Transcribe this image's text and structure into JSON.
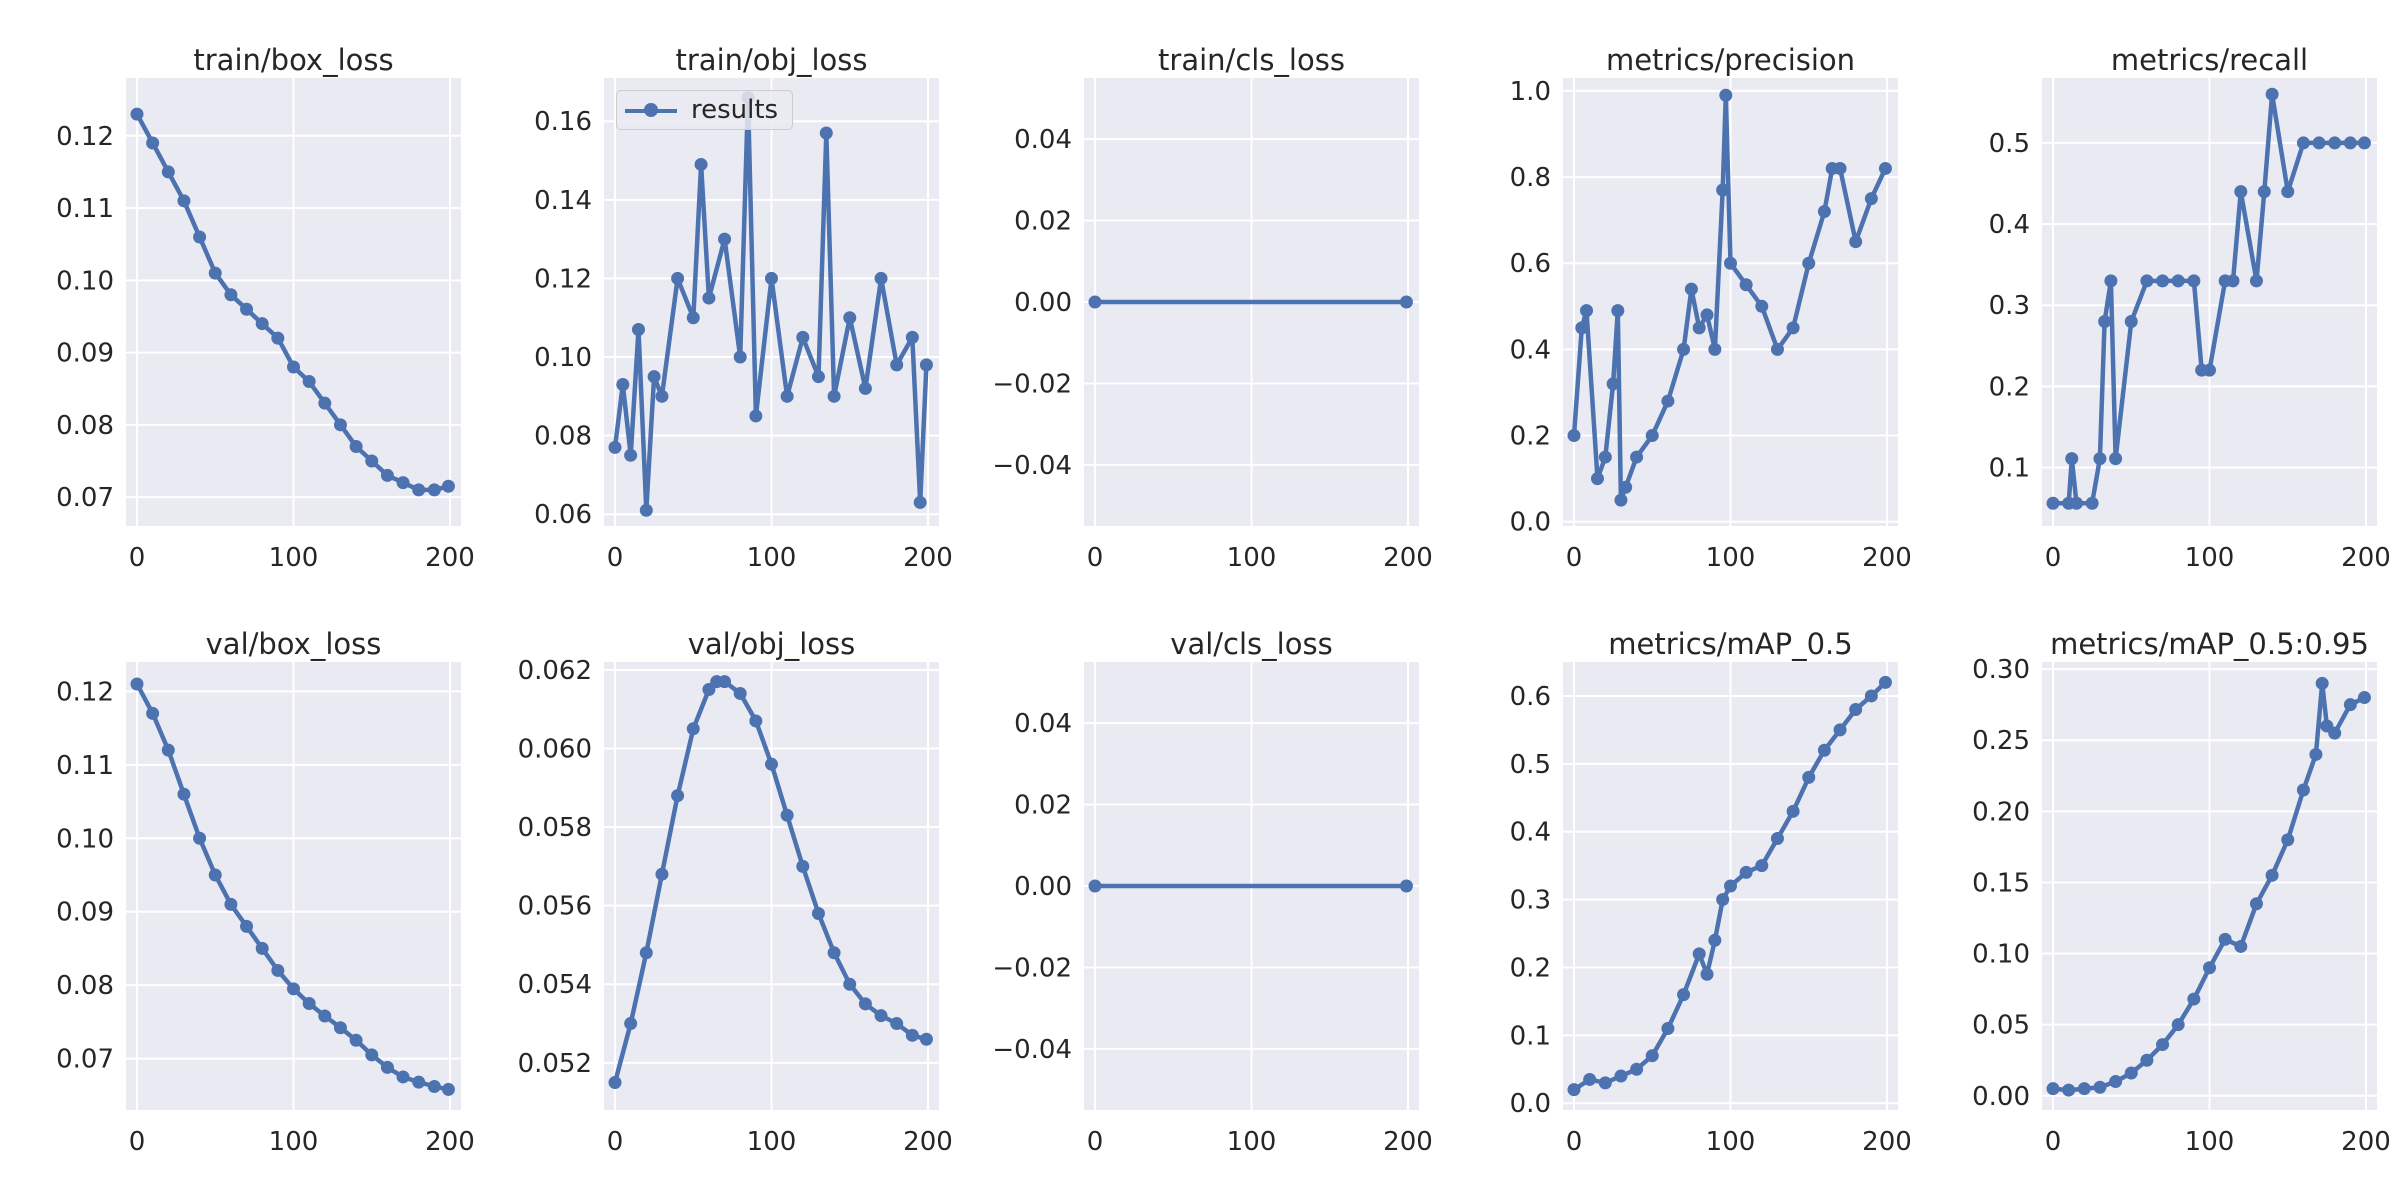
{
  "figure": {
    "legend_label": "results",
    "series_color": "#4c72b0",
    "background": "#eaeaf2",
    "grid_color": "#ffffff"
  },
  "chart_data": [
    {
      "type": "line",
      "title": "train/box_loss",
      "xlim": [
        0,
        200
      ],
      "ylim": [
        0.066,
        0.128
      ],
      "xticks": [
        0,
        100,
        200
      ],
      "yticks": [
        0.07,
        0.08,
        0.09,
        0.1,
        0.11,
        0.12
      ],
      "ytick_labels": [
        "0.07",
        "0.08",
        "0.09",
        "0.10",
        "0.11",
        "0.12"
      ],
      "x": [
        0,
        10,
        20,
        30,
        40,
        50,
        60,
        70,
        80,
        90,
        100,
        110,
        120,
        130,
        140,
        150,
        160,
        170,
        180,
        190,
        199
      ],
      "values": [
        0.123,
        0.119,
        0.115,
        0.111,
        0.106,
        0.101,
        0.098,
        0.096,
        0.094,
        0.092,
        0.088,
        0.086,
        0.083,
        0.08,
        0.077,
        0.075,
        0.073,
        0.072,
        0.071,
        0.071,
        0.0715
      ]
    },
    {
      "type": "line",
      "title": "train/obj_loss",
      "xlim": [
        0,
        200
      ],
      "ylim": [
        0.057,
        0.171
      ],
      "xticks": [
        0,
        100,
        200
      ],
      "yticks": [
        0.06,
        0.08,
        0.1,
        0.12,
        0.14,
        0.16
      ],
      "ytick_labels": [
        "0.06",
        "0.08",
        "0.10",
        "0.12",
        "0.14",
        "0.16"
      ],
      "x": [
        0,
        5,
        10,
        15,
        20,
        25,
        30,
        40,
        50,
        55,
        60,
        70,
        80,
        85,
        90,
        100,
        110,
        120,
        130,
        135,
        140,
        150,
        160,
        170,
        180,
        190,
        195,
        199
      ],
      "values": [
        0.077,
        0.093,
        0.075,
        0.107,
        0.061,
        0.095,
        0.09,
        0.12,
        0.11,
        0.149,
        0.115,
        0.13,
        0.1,
        0.166,
        0.085,
        0.12,
        0.09,
        0.105,
        0.095,
        0.157,
        0.09,
        0.11,
        0.092,
        0.12,
        0.098,
        0.105,
        0.063,
        0.098
      ]
    },
    {
      "type": "line",
      "title": "train/cls_loss",
      "xlim": [
        0,
        200
      ],
      "ylim": [
        -0.055,
        0.055
      ],
      "xticks": [
        0,
        100,
        200
      ],
      "yticks": [
        -0.04,
        -0.02,
        0.0,
        0.02,
        0.04
      ],
      "ytick_labels": [
        "−0.04",
        "−0.02",
        "0.00",
        "0.02",
        "0.04"
      ],
      "x": [
        0,
        199
      ],
      "values": [
        0.0,
        0.0
      ]
    },
    {
      "type": "line",
      "title": "metrics/precision",
      "xlim": [
        0,
        200
      ],
      "ylim": [
        -0.01,
        1.03
      ],
      "xticks": [
        0,
        100,
        200
      ],
      "yticks": [
        0.0,
        0.2,
        0.4,
        0.6,
        0.8,
        1.0
      ],
      "ytick_labels": [
        "0.0",
        "0.2",
        "0.4",
        "0.6",
        "0.8",
        "1.0"
      ],
      "x": [
        0,
        5,
        8,
        15,
        20,
        25,
        28,
        30,
        33,
        40,
        50,
        60,
        70,
        75,
        80,
        85,
        90,
        95,
        97,
        100,
        110,
        120,
        130,
        140,
        150,
        160,
        165,
        170,
        180,
        190,
        199
      ],
      "values": [
        0.2,
        0.45,
        0.49,
        0.1,
        0.15,
        0.32,
        0.49,
        0.05,
        0.08,
        0.15,
        0.2,
        0.28,
        0.4,
        0.54,
        0.45,
        0.48,
        0.4,
        0.77,
        0.99,
        0.6,
        0.55,
        0.5,
        0.4,
        0.45,
        0.6,
        0.72,
        0.82,
        0.82,
        0.65,
        0.75,
        0.82
      ]
    },
    {
      "type": "line",
      "title": "metrics/recall",
      "xlim": [
        0,
        200
      ],
      "ylim": [
        0.028,
        0.58
      ],
      "xticks": [
        0,
        100,
        200
      ],
      "yticks": [
        0.1,
        0.2,
        0.3,
        0.4,
        0.5
      ],
      "ytick_labels": [
        "0.1",
        "0.2",
        "0.3",
        "0.4",
        "0.5"
      ],
      "x": [
        0,
        10,
        12,
        15,
        25,
        30,
        33,
        37,
        40,
        50,
        60,
        70,
        80,
        90,
        95,
        100,
        110,
        115,
        120,
        130,
        135,
        140,
        150,
        160,
        170,
        180,
        190,
        199
      ],
      "values": [
        0.056,
        0.056,
        0.111,
        0.056,
        0.056,
        0.111,
        0.28,
        0.33,
        0.111,
        0.28,
        0.33,
        0.33,
        0.33,
        0.33,
        0.22,
        0.22,
        0.33,
        0.33,
        0.44,
        0.33,
        0.44,
        0.56,
        0.44,
        0.5,
        0.5,
        0.5,
        0.5,
        0.5
      ]
    },
    {
      "type": "line",
      "title": "val/box_loss",
      "xlim": [
        0,
        200
      ],
      "ylim": [
        0.063,
        0.124
      ],
      "xticks": [
        0,
        100,
        200
      ],
      "yticks": [
        0.07,
        0.08,
        0.09,
        0.1,
        0.11,
        0.12
      ],
      "ytick_labels": [
        "0.07",
        "0.08",
        "0.09",
        "0.10",
        "0.11",
        "0.12"
      ],
      "x": [
        0,
        10,
        20,
        30,
        40,
        50,
        60,
        70,
        80,
        90,
        100,
        110,
        120,
        130,
        140,
        150,
        160,
        170,
        180,
        190,
        199
      ],
      "values": [
        0.121,
        0.117,
        0.112,
        0.106,
        0.1,
        0.095,
        0.091,
        0.088,
        0.085,
        0.082,
        0.0795,
        0.0775,
        0.0758,
        0.0742,
        0.0725,
        0.0705,
        0.0688,
        0.0675,
        0.0668,
        0.0662,
        0.0658
      ]
    },
    {
      "type": "line",
      "title": "val/obj_loss",
      "xlim": [
        0,
        200
      ],
      "ylim": [
        0.0508,
        0.0622
      ],
      "xticks": [
        0,
        100,
        200
      ],
      "yticks": [
        0.052,
        0.054,
        0.056,
        0.058,
        0.06,
        0.062
      ],
      "ytick_labels": [
        "0.052",
        "0.054",
        "0.056",
        "0.058",
        "0.060",
        "0.062"
      ],
      "x": [
        0,
        10,
        20,
        30,
        40,
        50,
        60,
        65,
        70,
        80,
        90,
        100,
        110,
        120,
        130,
        140,
        150,
        160,
        170,
        180,
        190,
        199
      ],
      "values": [
        0.0515,
        0.053,
        0.0548,
        0.0568,
        0.0588,
        0.0605,
        0.0615,
        0.0617,
        0.0617,
        0.0614,
        0.0607,
        0.0596,
        0.0583,
        0.057,
        0.0558,
        0.0548,
        0.054,
        0.0535,
        0.0532,
        0.053,
        0.0527,
        0.0526
      ]
    },
    {
      "type": "line",
      "title": "val/cls_loss",
      "xlim": [
        0,
        200
      ],
      "ylim": [
        -0.055,
        0.055
      ],
      "xticks": [
        0,
        100,
        200
      ],
      "yticks": [
        -0.04,
        -0.02,
        0.0,
        0.02,
        0.04
      ],
      "ytick_labels": [
        "−0.04",
        "−0.02",
        "0.00",
        "0.02",
        "0.04"
      ],
      "x": [
        0,
        199
      ],
      "values": [
        0.0,
        0.0
      ]
    },
    {
      "type": "line",
      "title": "metrics/mAP_0.5",
      "xlim": [
        0,
        200
      ],
      "ylim": [
        -0.01,
        0.65
      ],
      "xticks": [
        0,
        100,
        200
      ],
      "yticks": [
        0.0,
        0.1,
        0.2,
        0.3,
        0.4,
        0.5,
        0.6
      ],
      "ytick_labels": [
        "0.0",
        "0.1",
        "0.2",
        "0.3",
        "0.4",
        "0.5",
        "0.6"
      ],
      "x": [
        0,
        10,
        20,
        30,
        40,
        50,
        60,
        70,
        80,
        85,
        90,
        95,
        100,
        110,
        120,
        130,
        140,
        150,
        160,
        170,
        180,
        190,
        199
      ],
      "values": [
        0.02,
        0.035,
        0.03,
        0.04,
        0.05,
        0.07,
        0.11,
        0.16,
        0.22,
        0.19,
        0.24,
        0.3,
        0.32,
        0.34,
        0.35,
        0.39,
        0.43,
        0.48,
        0.52,
        0.55,
        0.58,
        0.6,
        0.62
      ]
    },
    {
      "type": "line",
      "title": "metrics/mAP_0.5:0.95",
      "xlim": [
        0,
        200
      ],
      "ylim": [
        -0.01,
        0.305
      ],
      "xticks": [
        0,
        100,
        200
      ],
      "yticks": [
        0.0,
        0.05,
        0.1,
        0.15,
        0.2,
        0.25,
        0.3
      ],
      "ytick_labels": [
        "0.00",
        "0.05",
        "0.10",
        "0.15",
        "0.20",
        "0.25",
        "0.30"
      ],
      "x": [
        0,
        10,
        20,
        30,
        40,
        50,
        60,
        70,
        80,
        90,
        100,
        110,
        120,
        130,
        140,
        150,
        160,
        168,
        172,
        175,
        180,
        190,
        199
      ],
      "values": [
        0.005,
        0.004,
        0.005,
        0.006,
        0.01,
        0.016,
        0.025,
        0.036,
        0.05,
        0.068,
        0.09,
        0.11,
        0.105,
        0.135,
        0.155,
        0.18,
        0.215,
        0.24,
        0.29,
        0.26,
        0.255,
        0.275,
        0.28
      ]
    }
  ]
}
